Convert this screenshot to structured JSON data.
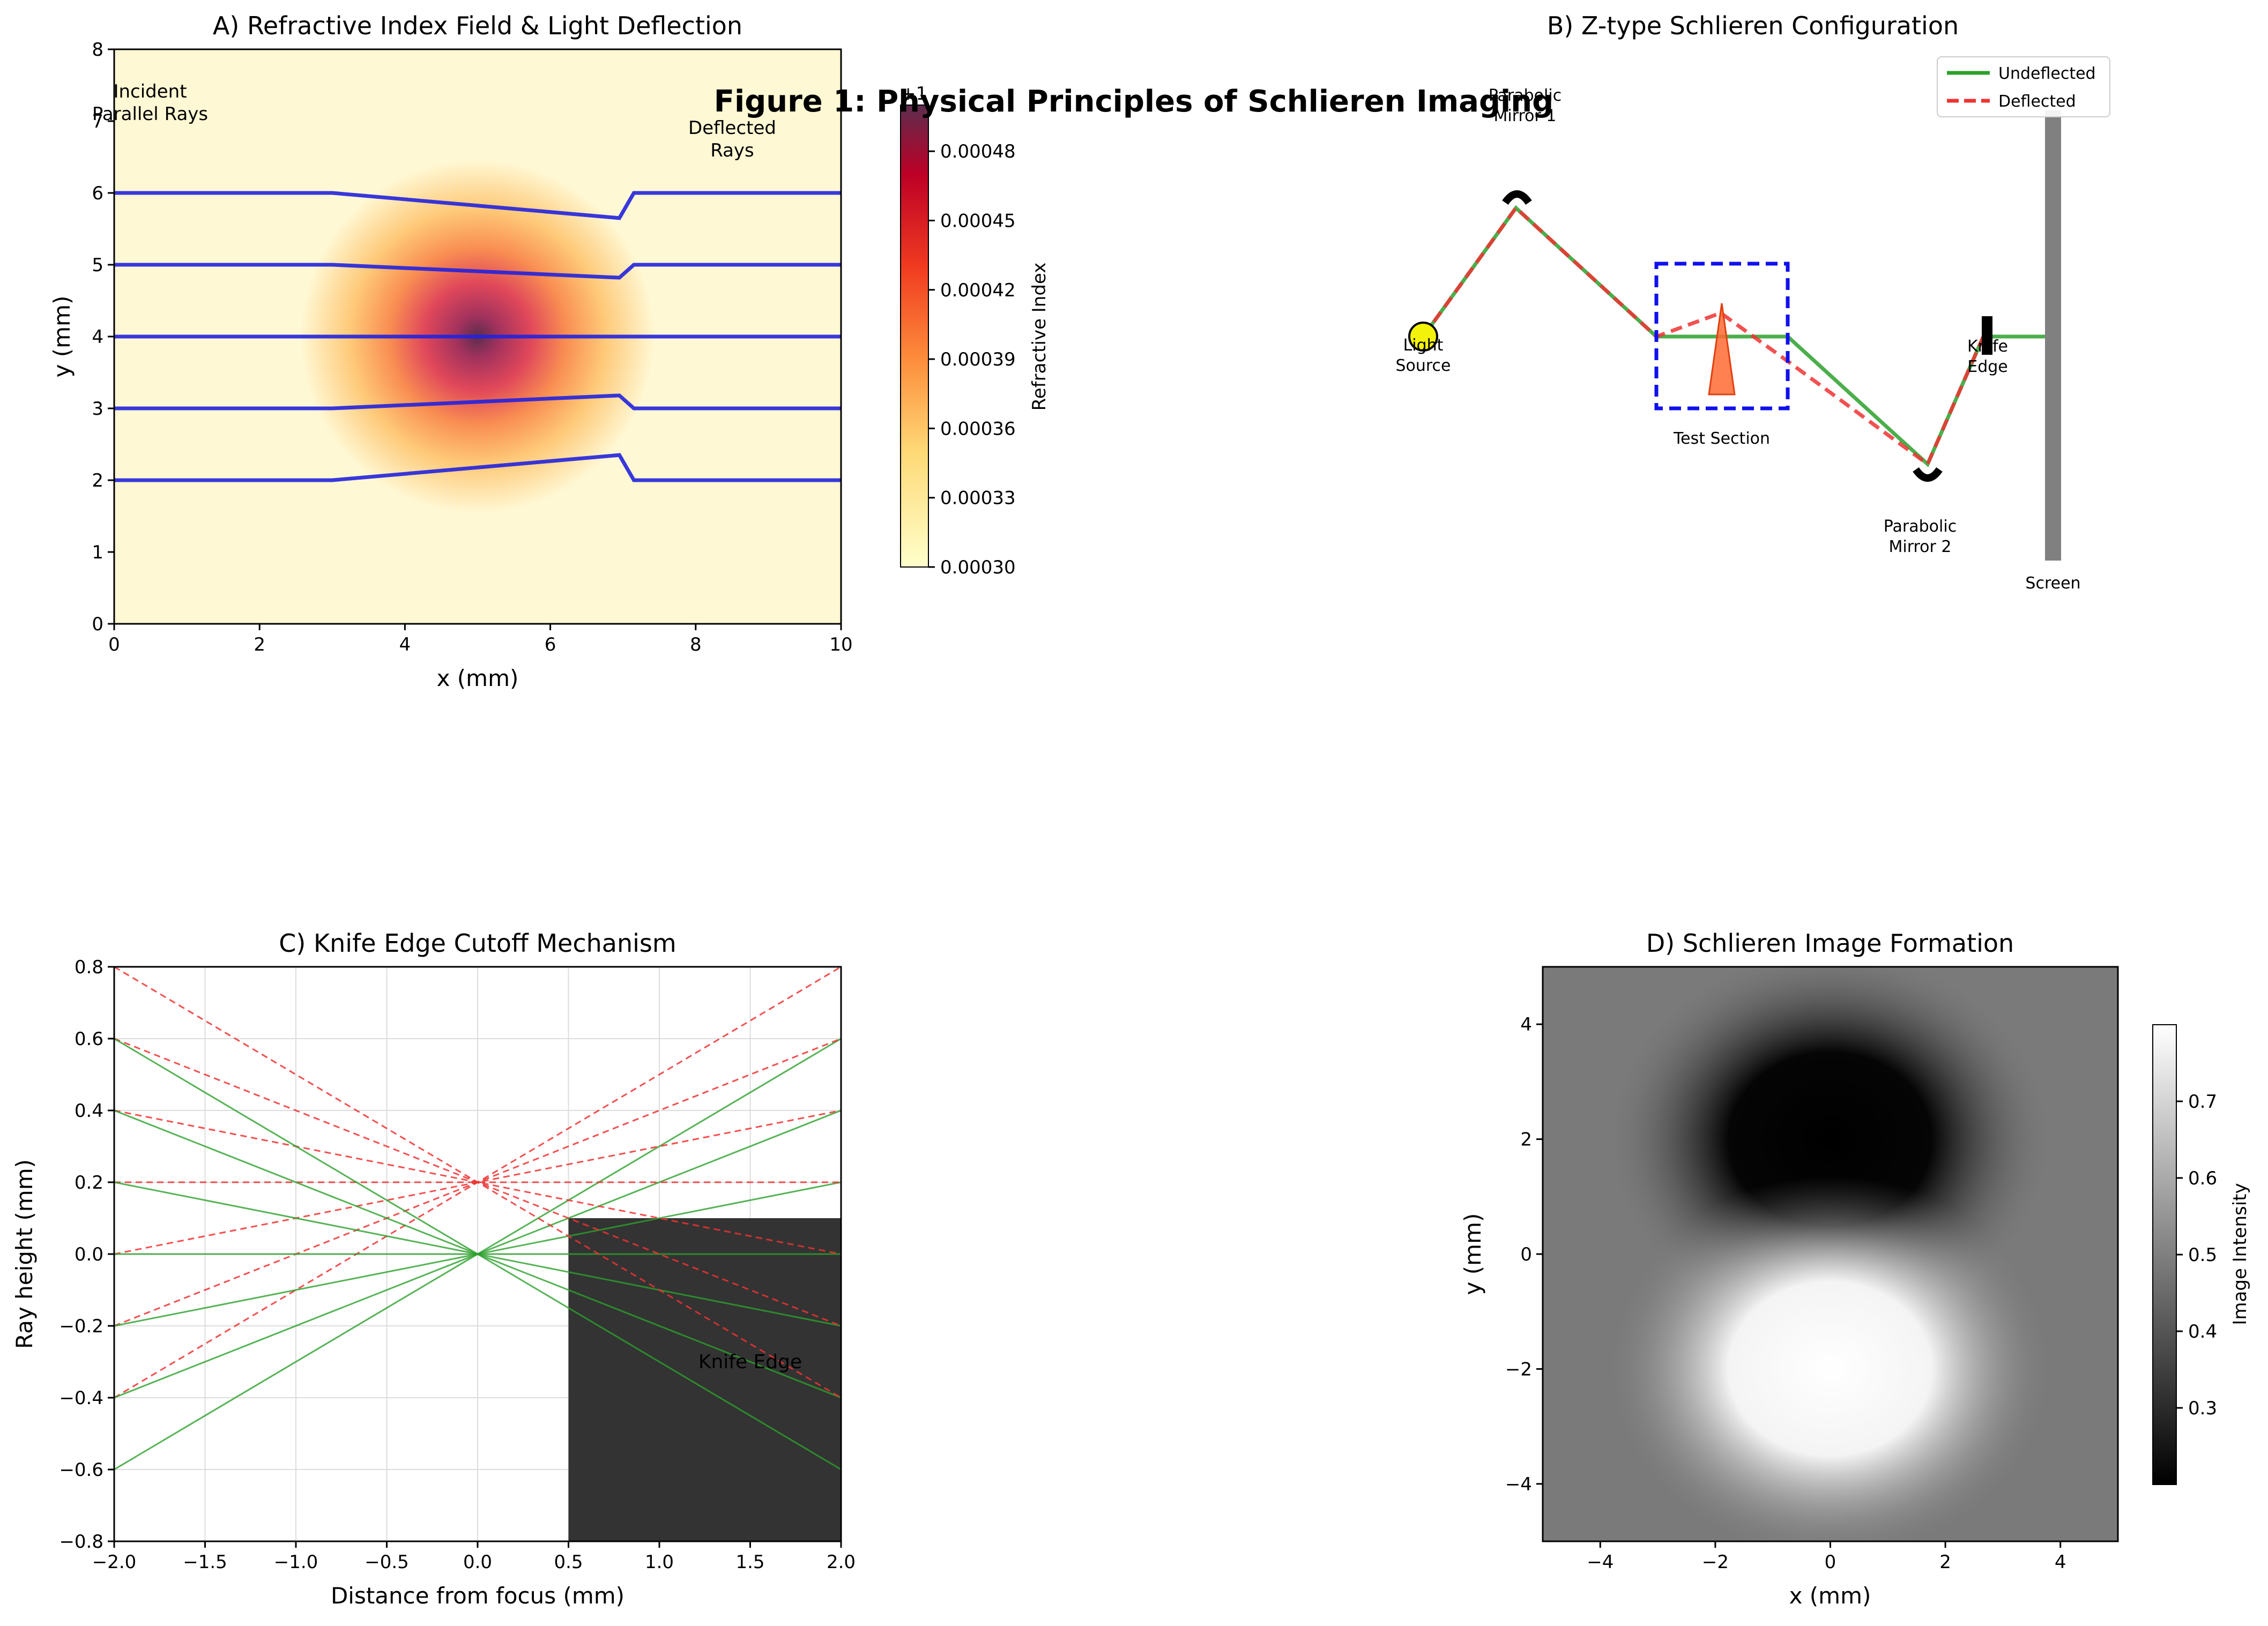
{
  "figure_title": "Figure 1: Physical Principles of Schlieren Imaging",
  "chart_data": [
    {
      "id": "A",
      "type": "heatmap",
      "title": "A) Refractive Index Field & Light Deflection",
      "xlabel": "x (mm)",
      "ylabel": "y (mm)",
      "xlim": [
        0,
        10
      ],
      "ylim": [
        0,
        8
      ],
      "xticks": [
        "0",
        "2",
        "4",
        "6",
        "8",
        "10"
      ],
      "yticks": [
        "0",
        "1",
        "2",
        "3",
        "4",
        "5",
        "6",
        "7",
        "8"
      ],
      "field": {
        "description": "Gaussian refractive index bump",
        "center": [
          5,
          4
        ],
        "base": 0.0003,
        "peak": 0.0005
      },
      "colorbar": {
        "label": "Refractive Index",
        "offset_text": "+1",
        "ticks": [
          "0.00030",
          "0.00033",
          "0.00036",
          "0.00039",
          "0.00042",
          "0.00045",
          "0.00048"
        ],
        "range": [
          0.0003,
          0.0005
        ]
      },
      "rays": [
        {
          "y0": 2,
          "y_at_7": 2.35
        },
        {
          "y0": 3,
          "y_at_7": 3.18
        },
        {
          "y0": 4,
          "y_at_7": 4.0
        },
        {
          "y0": 5,
          "y_at_7": 4.82
        },
        {
          "y0": 6,
          "y_at_7": 5.65
        }
      ],
      "annotations": [
        "Incident\nParallel Rays",
        "Deflected\nRays"
      ],
      "colors": {
        "ray": "#2222dd"
      }
    },
    {
      "id": "B",
      "type": "diagram",
      "title": "B) Z-type Schlieren Configuration",
      "labels": {
        "light_source": "Light\nSource",
        "mirror1": "Parabolic\nMirror 1",
        "test_section": "Test Section",
        "mirror2": "Parabolic\nMirror 2",
        "knife_edge": "Knife\nEdge",
        "screen": "Screen"
      },
      "legend": [
        {
          "label": "Undeflected",
          "color": "#2ca02c",
          "style": "solid"
        },
        {
          "label": "Deflected",
          "color": "#ee3333",
          "style": "dashed"
        }
      ],
      "legend_position": "top-right"
    },
    {
      "id": "C",
      "type": "line",
      "title": "C) Knife Edge Cutoff Mechanism",
      "xlabel": "Distance from focus (mm)",
      "ylabel": "Ray height (mm)",
      "xlim": [
        -2,
        2
      ],
      "ylim": [
        -0.8,
        0.8
      ],
      "xticks": [
        "−2.0",
        "−1.5",
        "−1.0",
        "−0.5",
        "0.0",
        "0.5",
        "1.0",
        "1.5",
        "2.0"
      ],
      "yticks": [
        "−0.8",
        "−0.6",
        "−0.4",
        "−0.2",
        "0.0",
        "0.2",
        "0.4",
        "0.6",
        "0.8"
      ],
      "grid": true,
      "undeflected_focus": 0.0,
      "deflected_focus": 0.2,
      "ray_heights": [
        -0.6,
        -0.4,
        -0.2,
        0.0,
        0.2,
        0.4,
        0.6
      ],
      "knife_edge": {
        "x_start": 0.5,
        "x_end": 2.0,
        "y_top": 0.1,
        "label": "Knife Edge"
      },
      "colors": {
        "undeflected": "#2ca02c",
        "deflected": "#ee3333",
        "knife": "#333333"
      }
    },
    {
      "id": "D",
      "type": "heatmap",
      "title": "D) Schlieren Image Formation",
      "xlabel": "x (mm)",
      "ylabel": "y (mm)",
      "xlim": [
        -5,
        5
      ],
      "ylim": [
        -5,
        5
      ],
      "xticks": [
        "−4",
        "−2",
        "0",
        "2",
        "4"
      ],
      "yticks": [
        "−4",
        "−2",
        "0",
        "2",
        "4"
      ],
      "field": {
        "description": "dark lobe above, bright lobe below",
        "background": 0.5,
        "dark_center": [
          0,
          2
        ],
        "bright_center": [
          0,
          -2
        ],
        "min": 0.2,
        "max": 0.8
      },
      "colorbar": {
        "label": "Image Intensity",
        "ticks": [
          "0.3",
          "0.4",
          "0.5",
          "0.6",
          "0.7"
        ],
        "range": [
          0.2,
          0.8
        ]
      }
    }
  ]
}
